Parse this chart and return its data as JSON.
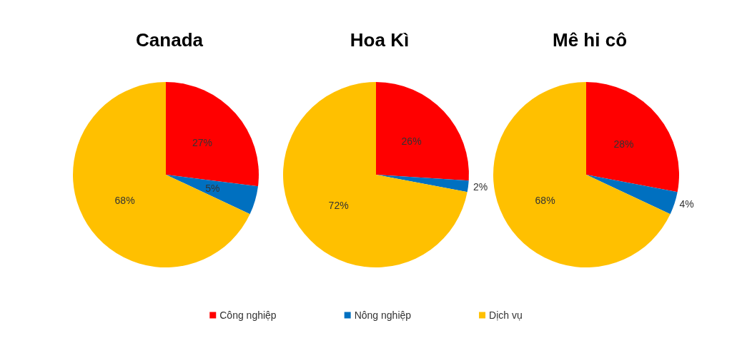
{
  "chart_data": [
    {
      "type": "pie",
      "title": "Canada",
      "categories": [
        null,
        null,
        null
      ],
      "values": [
        27,
        5,
        68
      ],
      "value_labels": [
        "27%",
        "5%",
        "68%"
      ],
      "colors": [
        "#ff0000",
        "#0070c0",
        "#ffc000"
      ],
      "legend": false
    },
    {
      "type": "pie",
      "title": "Hoa Kì",
      "categories": [
        "Công nghiệp",
        "Nông nghiệp",
        "Dịch vụ"
      ],
      "values": [
        26,
        2,
        72
      ],
      "value_labels": [
        "26%",
        "2%",
        "72%"
      ],
      "colors": [
        "#ff0000",
        "#0070c0",
        "#ffc000"
      ],
      "legend": "bottom"
    },
    {
      "type": "pie",
      "title": "Mê hi cô",
      "categories": [
        null,
        null,
        null
      ],
      "values": [
        28,
        4,
        68
      ],
      "value_labels": [
        "28%",
        "4%",
        "68%"
      ],
      "colors": [
        "#ff0000",
        "#0070c0",
        "#ffc000"
      ],
      "legend": false
    }
  ]
}
